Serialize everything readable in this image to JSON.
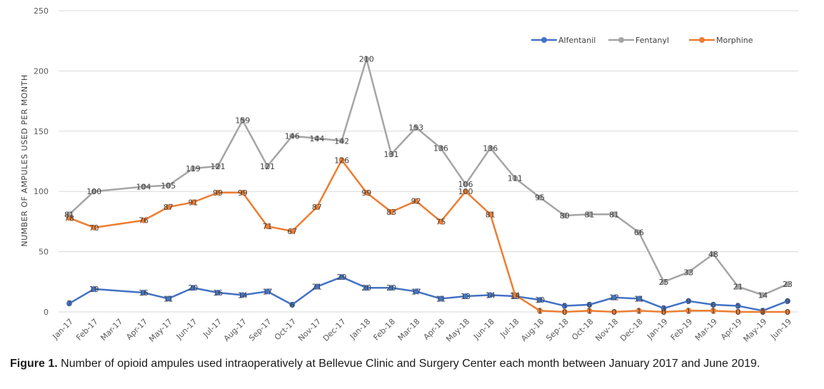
{
  "chart_data": {
    "type": "line",
    "ylabel": "NUMBER OF AMPULES USED PER MONTH",
    "ylim": [
      0,
      250
    ],
    "yticks": [
      0,
      50,
      100,
      150,
      200,
      250
    ],
    "grid": true,
    "legend_position": "top-right",
    "categories": [
      "Jan-17",
      "Feb-17",
      "Mar-17",
      "Apr-17",
      "May-17",
      "Jun-17",
      "Jul-17",
      "Aug-17",
      "Sep-17",
      "Oct-17",
      "Nov-17",
      "Dec-17",
      "Jan-18",
      "Feb-18",
      "Mar-18",
      "Apr-18",
      "May-18",
      "Jun-18",
      "Jul-18",
      "Aug-18",
      "Sep-18",
      "Oct-18",
      "Nov-18",
      "Dec-18",
      "Jan-19",
      "Feb-19",
      "Mar-19",
      "Apr-19",
      "May-19",
      "Jun-19"
    ],
    "series": [
      {
        "name": "Alfentanil",
        "color": "#4472C4",
        "values": [
          7,
          19,
          null,
          16,
          11,
          20,
          16,
          14,
          17,
          6,
          21,
          29,
          20,
          20,
          17,
          11,
          13,
          14,
          13,
          10,
          5,
          6,
          12,
          11,
          3,
          9,
          6,
          5,
          1,
          9
        ],
        "labels": [
          "7",
          "19",
          "",
          "16",
          "11",
          "20",
          "16",
          "14",
          "17",
          "6",
          "21",
          "29",
          "20",
          "20",
          "17",
          "11",
          "13",
          "14",
          "13",
          "10",
          "5",
          "6",
          "12",
          "11",
          "3",
          "9",
          "6",
          "5",
          "1",
          "9"
        ]
      },
      {
        "name": "Fentanyl",
        "color": "#A5A5A5",
        "values": [
          81,
          100,
          null,
          104,
          105,
          119,
          121,
          159,
          121,
          146,
          144,
          142,
          210,
          131,
          153,
          136,
          106,
          136,
          111,
          95,
          80,
          81,
          81,
          66,
          25,
          33,
          48,
          21,
          14,
          23
        ],
        "labels": [
          "81",
          "100",
          "",
          "104",
          "105",
          "119",
          "121",
          "159",
          "121",
          "146",
          "144",
          "142",
          "210",
          "131",
          "153",
          "136",
          "106",
          "136",
          "111",
          "95",
          "80",
          "81",
          "81",
          "66",
          "25",
          "33",
          "48",
          "21",
          "14",
          "23"
        ]
      },
      {
        "name": "Morphine",
        "color": "#ED7D31",
        "values": [
          78,
          70,
          null,
          76,
          87,
          91,
          99,
          99,
          71,
          67,
          87,
          126,
          99,
          83,
          92,
          75,
          100,
          81,
          14,
          1,
          0,
          1,
          0,
          1,
          0,
          1,
          1,
          0,
          0,
          0
        ],
        "labels": [
          "78",
          "70",
          "",
          "76",
          "87",
          "91",
          "99",
          "99",
          "71",
          "67",
          "87",
          "126",
          "99",
          "83",
          "92",
          "75",
          "100",
          "81",
          "14",
          "1",
          "0",
          "1",
          "0",
          "1",
          "0",
          "1",
          "1",
          "0",
          "0",
          "0"
        ]
      }
    ]
  },
  "caption": {
    "figure_label": "Figure 1.",
    "text": " Number of opioid ampules used intraoperatively at Bellevue Clinic and Surgery Center each month between January 2017 and June 2019."
  }
}
